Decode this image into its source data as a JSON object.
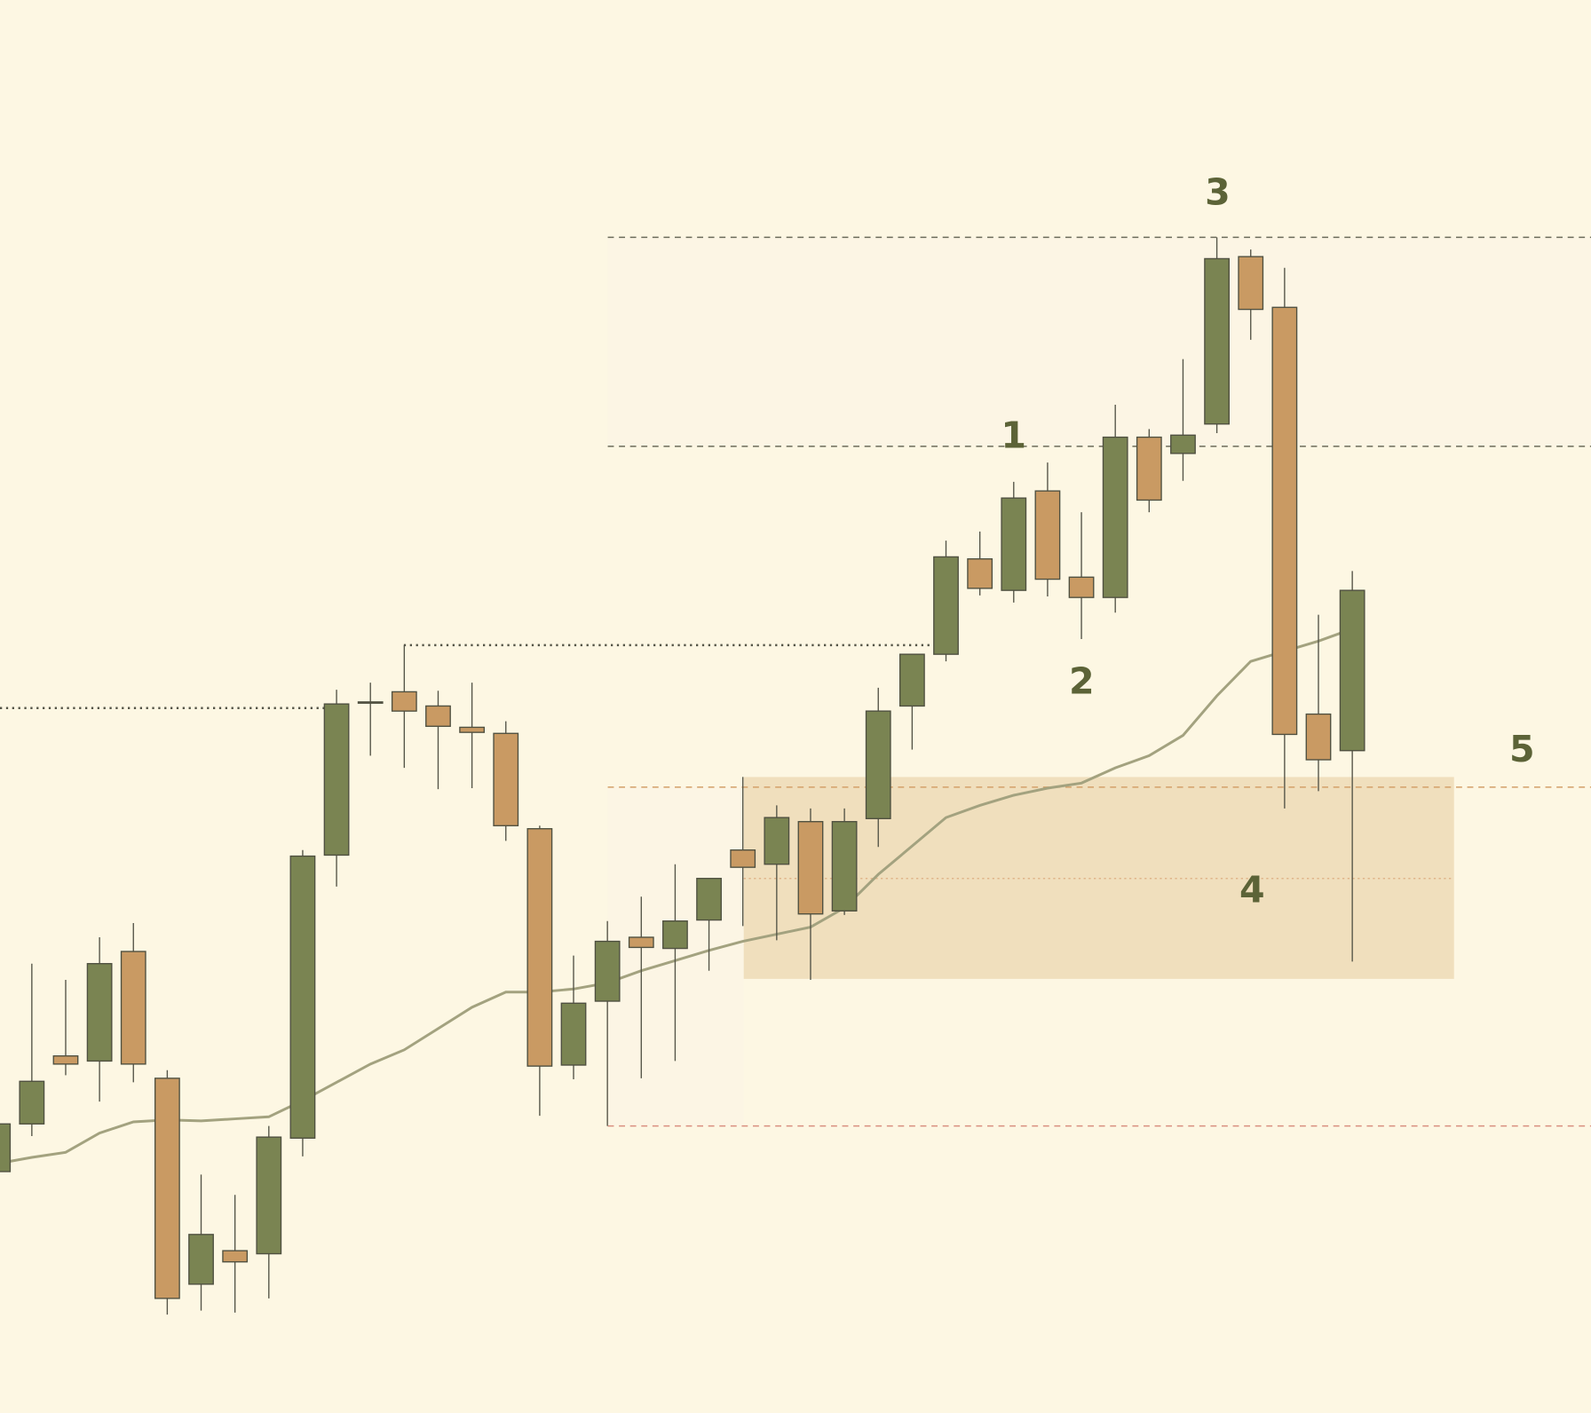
{
  "chart_data": {
    "type": "candlestick",
    "x": [
      0,
      1,
      2,
      3,
      4,
      5,
      6,
      7,
      8,
      9,
      10,
      11,
      12,
      13,
      14,
      15,
      16,
      17,
      18,
      19,
      20,
      21,
      22,
      23,
      24,
      25,
      26,
      27,
      28,
      29,
      30,
      31,
      32,
      33,
      34,
      35,
      36,
      37,
      38,
      39,
      40
    ],
    "open": [
      238,
      285,
      352,
      347,
      455,
      330,
      127,
      160,
      157,
      271,
      550,
      701,
      711,
      697,
      676,
      670,
      576,
      343,
      406,
      469,
      458,
      486,
      555,
      541,
      583,
      495,
      586,
      697,
      748,
      842,
      811,
      909,
      824,
      804,
      962,
      946,
      975,
      1140,
      1090,
      689,
      653
    ],
    "high": [
      293,
      443,
      427,
      469,
      483,
      338,
      235,
      215,
      283,
      555,
      713,
      720,
      757,
      712,
      720,
      682,
      579,
      451,
      485,
      509,
      541,
      527,
      627,
      599,
      596,
      596,
      715,
      748,
      860,
      869,
      918,
      937,
      888,
      994,
      970,
      1039,
      1159,
      1147,
      1129,
      787,
      830
    ],
    "low": [
      233,
      273,
      333,
      307,
      326,
      97,
      101,
      99,
      113,
      253,
      519,
      648,
      636,
      615,
      616,
      564,
      293,
      329,
      283,
      330,
      347,
      436,
      480,
      466,
      427,
      491,
      558,
      654,
      741,
      806,
      799,
      805,
      763,
      789,
      888,
      919,
      966,
      1058,
      596,
      613,
      445
    ],
    "close": [
      285,
      327,
      344,
      443,
      344,
      113,
      176,
      149,
      272,
      549,
      699,
      701,
      692,
      677,
      671,
      579,
      342,
      404,
      465,
      459,
      485,
      527,
      538,
      587,
      492,
      583,
      692,
      748,
      844,
      813,
      902,
      822,
      804,
      962,
      900,
      964,
      1138,
      1088,
      669,
      644,
      811
    ],
    "up_color": "#7a8452",
    "down_color": "#c99a63",
    "ma": {
      "color": "#a3a27f",
      "values": [
        246,
        252,
        257,
        276,
        287,
        289,
        288,
        290,
        292,
        308,
        326,
        344,
        358,
        379,
        400,
        415,
        415,
        418,
        424,
        436,
        446,
        456,
        465,
        472,
        479,
        498,
        531,
        559,
        587,
        599,
        609,
        616,
        621,
        636,
        648,
        668,
        707,
        741,
        751,
        761,
        773
      ]
    },
    "xlim": [
      0.06,
      47.05
    ],
    "ylim": [
      0,
      1393
    ],
    "zone": {
      "low": 428,
      "high": 627,
      "color": "#f0dfbd"
    },
    "levels": [
      {
        "value": 1159,
        "color": "#6b6b5a",
        "style": "dashed"
      },
      {
        "value": 953,
        "color": "#6b6b5a",
        "style": "dashed"
      },
      {
        "value": 617,
        "color": "#d3a06a",
        "style": "dashed"
      },
      {
        "value": 283,
        "color": "#d98f80",
        "style": "dashed"
      },
      {
        "value": 527,
        "color": "#e0b58a",
        "style": "dotted"
      },
      {
        "value": 695,
        "color": "#555548",
        "style": "dotted"
      },
      {
        "value": 757,
        "color": "#555548",
        "style": "dotted"
      }
    ],
    "annotations": [
      "1",
      "2",
      "3",
      "4",
      "5"
    ]
  }
}
